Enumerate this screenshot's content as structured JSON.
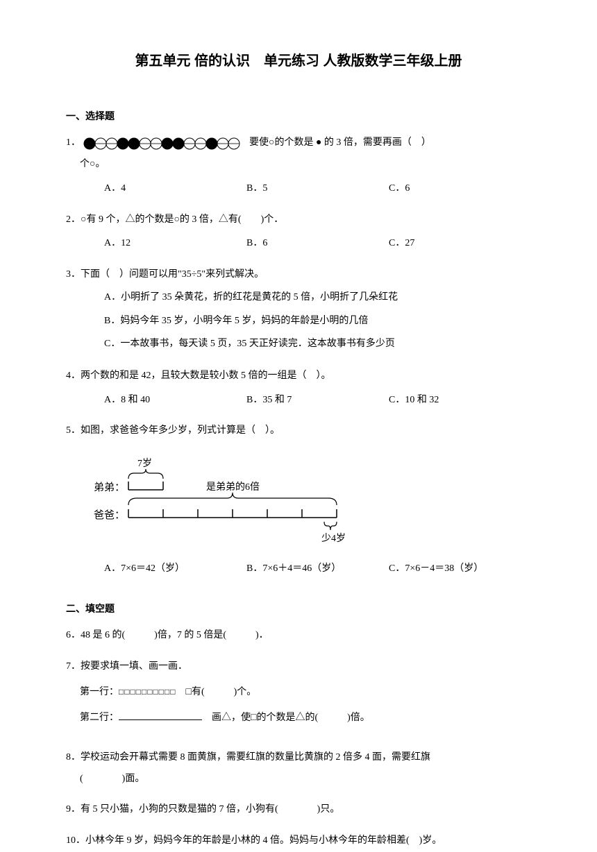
{
  "title": "第五单元 倍的认识　单元练习  人教版数学三年级上册",
  "section1": {
    "heading": "一、选择题",
    "q1": {
      "num": "1．",
      "text_after": " 要使○的个数是 ● 的 3 倍，需要再画（　）",
      "text_line2": "个○。",
      "options": {
        "a": "A．4",
        "b": "B．5",
        "c": "C．6"
      },
      "circles": {
        "count": 14,
        "pattern": [
          1,
          0,
          0,
          1,
          1,
          0,
          0,
          1,
          1,
          0,
          0,
          1,
          0,
          0
        ],
        "fill_color": "#000000",
        "stroke_color": "#000000",
        "radius": 8,
        "diameter": 16
      }
    },
    "q2": {
      "text": "2．○有 9 个，△的个数是○的 3 倍，△有(　　)个．",
      "options": {
        "a": "A．12",
        "b": "B．6",
        "c": "C．27"
      }
    },
    "q3": {
      "text": "3．下面（　）问题可以用\"35÷5\"来列式解决。",
      "a": "A．小明折了 35 朵黄花，折的红花是黄花的 5 倍，小明折了几朵红花",
      "b": "B．妈妈今年 35 岁，小明今年 5 岁，妈妈的年龄是小明的几倍",
      "c": "C．一本故事书，每天读 5 页，35 天正好读完．这本故事书有多少页"
    },
    "q4": {
      "text": "4．两个数的和是 42，且较大数是较小数 5 倍的一组是（　）。",
      "options": {
        "a": "A．8 和 40",
        "b": "B．35 和 7",
        "c": "C．10 和 32"
      }
    },
    "q5": {
      "text": "5．如图，求爸爸今年多少岁，列式计算是（　）。",
      "diagram": {
        "didi_label": "弟弟：",
        "baba_label": "爸爸：",
        "age_label": "7岁",
        "multiple_label": "是弟弟的6倍",
        "less_label": "少4岁",
        "stroke_color": "#000000",
        "segment_count": 6
      },
      "options": {
        "a": "A．7×6＝42（岁）",
        "b": "B．7×6＋4＝46（岁）",
        "c": "C．7×6－4＝38（岁）"
      }
    }
  },
  "section2": {
    "heading": "二、填空题",
    "q6": "6．48 是 6 的(　　　)倍，7 的 5 倍是(　　　)．",
    "q7": {
      "text": "7．按要求填一填、画一画．",
      "row1_label": "第一行：",
      "row1_squares": "□□□□□□□□□□",
      "row1_after": "　□有(　　　)个。",
      "row2_label": "第二行：",
      "row2_after": "　画△，使□的个数是△的(　　　)倍。"
    },
    "q8": {
      "line1": "8．学校运动会开幕式需要 8 面黄旗，需要红旗的数量比黄旗的 2 倍多 4 面，需要红旗",
      "line2": "(　　　　)面。"
    },
    "q9": "9．有 5 只小猫，小狗的只数是猫的 7 倍，小狗有(　　　　)只。",
    "q10": "10．小林今年 9 岁，妈妈今年的年龄是小林的 4 倍。妈妈与小林今年的年龄相差(　)岁。"
  }
}
